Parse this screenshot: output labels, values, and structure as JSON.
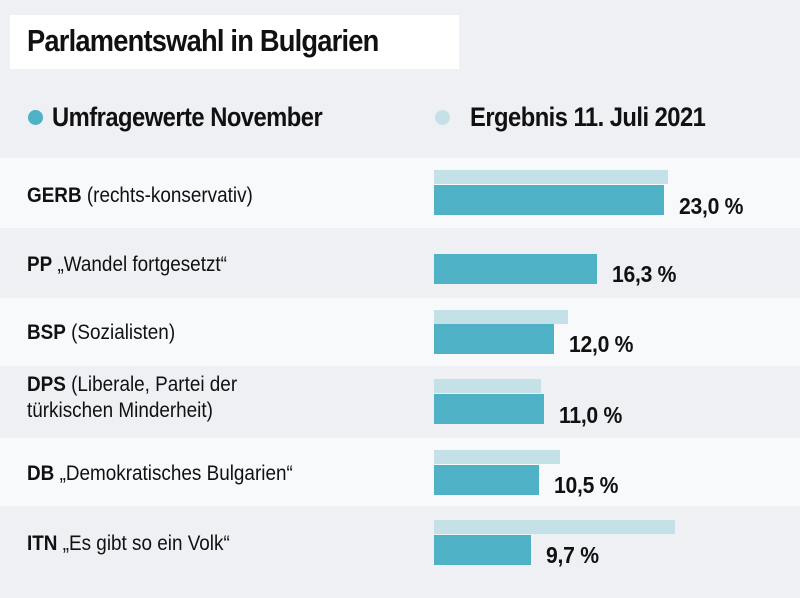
{
  "chart_data": {
    "type": "bar",
    "orientation": "horizontal",
    "title": "Parlamentswahl in Bulgarien",
    "xlabel": "",
    "ylabel": "",
    "xlim": [
      0,
      36
    ],
    "grid": false,
    "legend_position": "top",
    "categories": [
      {
        "abbr": "GERB",
        "desc": "(rechts-konservativ)"
      },
      {
        "abbr": "PP",
        "desc": "„Wandel fortgesetzt“"
      },
      {
        "abbr": "BSP",
        "desc": "(Sozialisten)"
      },
      {
        "abbr": "DPS",
        "desc": "(Liberale, Partei der türkischen Minderheit)",
        "desc_line1": "(Liberale, Partei der",
        "desc_line2": "türkischen Minderheit)"
      },
      {
        "abbr": "DB",
        "desc": "„Demokratisches Bulgarien“"
      },
      {
        "abbr": "ITN",
        "desc": "„Es gibt so ein Volk“"
      }
    ],
    "series": [
      {
        "name": "Umfragewerte November",
        "color": "#4eb1c5",
        "values": [
          23.0,
          16.3,
          12.0,
          11.0,
          10.5,
          9.7
        ],
        "labels": [
          "23,0 %",
          "16,3 %",
          "12,0 %",
          "11,0 %",
          "10,5 %",
          "9,7 %"
        ]
      },
      {
        "name": "Ergebnis 11. Juli 2021",
        "color": "#c5e1e8",
        "values": [
          23.4,
          null,
          13.4,
          10.7,
          12.6,
          24.1
        ]
      }
    ]
  },
  "colors": {
    "background": "#eff0f4",
    "row_light": "#f8f9fb",
    "title_box": "#ffffff",
    "text": "#111111"
  }
}
